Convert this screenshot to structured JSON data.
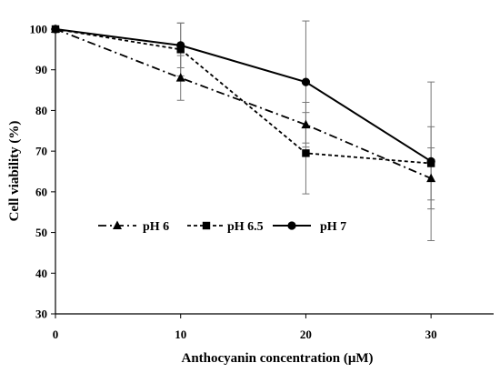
{
  "chart_data": {
    "type": "line",
    "title": "",
    "xlabel": "Anthocyanin concentration (μM)",
    "ylabel": "Cell viability (%)",
    "x": [
      0,
      10,
      20,
      30
    ],
    "xlim": [
      0,
      35
    ],
    "ylim": [
      30,
      100
    ],
    "xticks": [
      "0",
      "10",
      "20",
      "30"
    ],
    "yticks": [
      "30",
      "40",
      "50",
      "60",
      "70",
      "80",
      "90",
      "100"
    ],
    "grid": false,
    "legend_position": "middle-left",
    "series": [
      {
        "name": "pH 6",
        "marker": "triangle",
        "line_style": "dash-dot",
        "color": "#000000",
        "values": [
          100,
          88,
          76.5,
          63.3
        ],
        "errors": [
          0,
          5.5,
          5.5,
          7.5
        ]
      },
      {
        "name": "pH 6.5",
        "marker": "square",
        "line_style": "dashed",
        "color": "#000000",
        "values": [
          100,
          95,
          69.5,
          67
        ],
        "errors": [
          0,
          6.5,
          10,
          9
        ]
      },
      {
        "name": "pH 7",
        "marker": "circle",
        "line_style": "solid",
        "color": "#000000",
        "values": [
          100,
          96,
          87,
          67.5
        ],
        "errors": [
          0,
          5.5,
          15,
          19.5
        ]
      }
    ]
  }
}
